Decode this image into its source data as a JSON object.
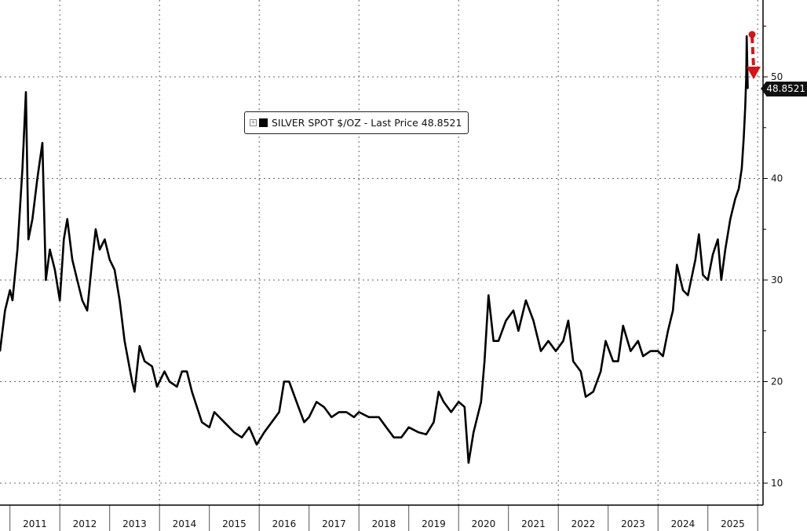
{
  "chart_data": {
    "type": "line",
    "title": "",
    "legend": {
      "label": "SILVER SPOT $/OZ - Last Price 48.8521",
      "placement": "top-center"
    },
    "last_price_label": "48.8521",
    "last_price": 48.8521,
    "xlabel": "",
    "ylabel": "",
    "ylim": [
      5,
      57
    ],
    "xlim": [
      2010.8,
      2026.1
    ],
    "y_ticks": [
      10,
      20,
      30,
      40,
      50
    ],
    "x_tick_labels": [
      "2011",
      "2012",
      "2013",
      "2014",
      "2015",
      "2016",
      "2017",
      "2018",
      "2019",
      "2020",
      "2021",
      "2022",
      "2023",
      "2024",
      "2025"
    ],
    "grid": true,
    "line_color": "#000000",
    "annotation_color": "#dd1111",
    "annotation": "red dashed down-arrow at latest peak",
    "series": [
      {
        "name": "SILVER SPOT $/OZ",
        "x": [
          2010.8,
          2010.9,
          2011.0,
          2011.05,
          2011.15,
          2011.25,
          2011.32,
          2011.37,
          2011.45,
          2011.55,
          2011.65,
          2011.72,
          2011.8,
          2011.9,
          2012.0,
          2012.08,
          2012.15,
          2012.25,
          2012.35,
          2012.45,
          2012.55,
          2012.65,
          2012.72,
          2012.8,
          2012.9,
          2013.0,
          2013.1,
          2013.2,
          2013.3,
          2013.45,
          2013.5,
          2013.6,
          2013.7,
          2013.85,
          2013.95,
          2014.1,
          2014.2,
          2014.35,
          2014.45,
          2014.55,
          2014.65,
          2014.85,
          2015.0,
          2015.1,
          2015.3,
          2015.5,
          2015.65,
          2015.8,
          2015.95,
          2016.1,
          2016.25,
          2016.4,
          2016.5,
          2016.6,
          2016.75,
          2016.9,
          2017.0,
          2017.15,
          2017.3,
          2017.45,
          2017.6,
          2017.75,
          2017.9,
          2018.0,
          2018.2,
          2018.4,
          2018.55,
          2018.7,
          2018.85,
          2019.0,
          2019.2,
          2019.35,
          2019.5,
          2019.6,
          2019.7,
          2019.85,
          2020.0,
          2020.12,
          2020.2,
          2020.3,
          2020.45,
          2020.52,
          2020.6,
          2020.7,
          2020.8,
          2020.95,
          2021.1,
          2021.2,
          2021.35,
          2021.5,
          2021.65,
          2021.8,
          2021.95,
          2022.1,
          2022.2,
          2022.3,
          2022.45,
          2022.55,
          2022.7,
          2022.85,
          2022.95,
          2023.1,
          2023.2,
          2023.3,
          2023.45,
          2023.6,
          2023.7,
          2023.85,
          2024.0,
          2024.1,
          2024.2,
          2024.3,
          2024.38,
          2024.5,
          2024.6,
          2024.75,
          2024.82,
          2024.9,
          2025.0,
          2025.1,
          2025.2,
          2025.27,
          2025.35,
          2025.45,
          2025.55,
          2025.62,
          2025.68,
          2025.72,
          2025.75,
          2025.77,
          2025.78,
          2025.8
        ],
        "values": [
          23,
          27,
          29,
          28,
          33,
          41,
          48.5,
          34,
          36,
          40,
          43.5,
          30,
          33,
          31,
          28,
          34,
          36,
          32,
          30,
          28,
          27,
          32,
          35,
          33,
          34,
          32,
          31,
          28,
          24,
          20,
          19,
          23.5,
          22,
          21.5,
          19.5,
          21,
          20,
          19.5,
          21,
          21,
          19,
          16,
          15.5,
          17,
          16,
          15,
          14.5,
          15.5,
          13.8,
          15,
          16,
          17,
          20,
          20,
          18,
          16,
          16.5,
          18,
          17.5,
          16.5,
          17,
          17,
          16.5,
          17,
          16.5,
          16.5,
          15.5,
          14.5,
          14.5,
          15.5,
          15,
          14.8,
          16,
          19,
          18,
          17,
          18,
          17.5,
          12,
          15,
          18,
          22,
          28.5,
          24,
          24,
          26,
          27,
          25,
          28,
          26,
          23,
          24,
          23,
          24,
          26,
          22,
          21,
          18.5,
          19,
          21,
          24,
          22,
          22,
          25.5,
          23,
          24,
          22.5,
          23,
          23,
          22.5,
          25,
          27,
          31.5,
          29,
          28.5,
          32,
          34.5,
          30.5,
          30,
          32.5,
          34,
          30,
          33,
          36,
          38,
          39,
          41,
          44,
          47,
          50,
          54,
          48.85
        ]
      }
    ]
  }
}
